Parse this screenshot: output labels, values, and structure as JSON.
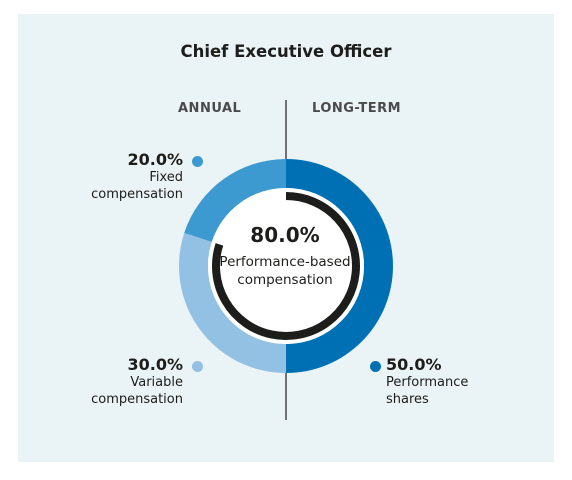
{
  "title": "Chief Executive Officer",
  "sections": {
    "left": "ANNUAL",
    "right": "LONG-TERM"
  },
  "center": {
    "value": "80.0%",
    "label_line1": "Performance-based",
    "label_line2": "compensation"
  },
  "colors": {
    "fixed": "#3d9ad1",
    "variable": "#92c1e3",
    "performance_shares": "#0070b4",
    "inner_ring": "#1d1d1b",
    "background": "#eaf3f6"
  },
  "annotations": {
    "fixed": {
      "value": "20.0%",
      "line1": "Fixed",
      "line2": "compensation"
    },
    "variable": {
      "value": "30.0%",
      "line1": "Variable",
      "line2": "compensation"
    },
    "performance_shares": {
      "value": "50.0%",
      "line1": "Performance",
      "line2": "shares"
    }
  },
  "chart_data": {
    "type": "pie",
    "title": "Chief Executive Officer",
    "style": "donut",
    "categories": [
      "Performance shares",
      "Variable compensation",
      "Fixed compensation"
    ],
    "values": [
      50.0,
      30.0,
      20.0
    ],
    "groups": {
      "ANNUAL": [
        "Fixed compensation",
        "Variable compensation"
      ],
      "LONG-TERM": [
        "Performance shares"
      ]
    },
    "center_value": 80.0,
    "center_label": "Performance-based compensation"
  }
}
